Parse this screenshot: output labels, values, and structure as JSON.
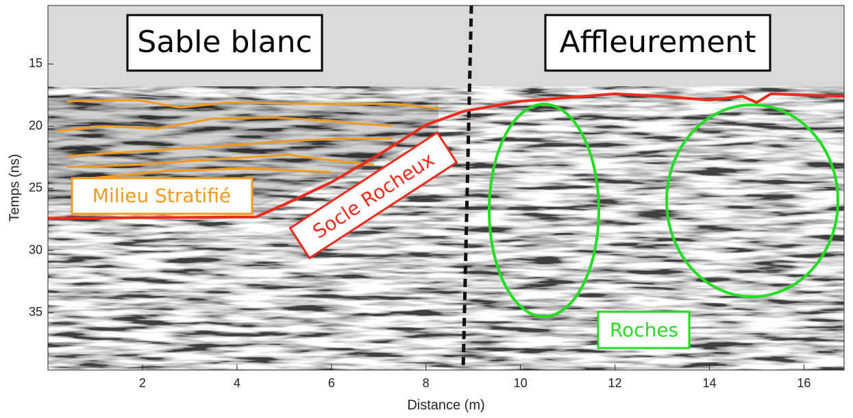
{
  "chart_data": {
    "type": "radargram",
    "xlabel": "Distance (m)",
    "ylabel": "Temps (ns)",
    "xlim": [
      0,
      16.85
    ],
    "ylim": [
      39.6,
      10.3
    ],
    "xticks": [
      2,
      4,
      6,
      8,
      10,
      12,
      14,
      16
    ],
    "yticks": [
      15,
      20,
      25,
      30,
      35
    ],
    "annotations": [
      "Sable blanc",
      "Affleurement",
      "Milieu Stratifié",
      "Socle Rocheux",
      "Roches"
    ],
    "series": [
      {
        "name": "Socle Rocheux",
        "color": "#ee2a1b",
        "x": [
          0,
          4.4,
          5,
          6,
          7,
          8,
          8.8,
          10,
          12,
          13,
          14,
          14.7,
          15,
          15.3,
          16.85
        ],
        "values": [
          27.4,
          27.3,
          26.3,
          24.5,
          22.3,
          19.9,
          18.8,
          18.0,
          17.4,
          17.6,
          17.9,
          17.6,
          18.1,
          17.4,
          17.6
        ]
      }
    ],
    "layers": {
      "color": "#f39a1e",
      "lines": [
        {
          "x": [
            0.4,
            1.9,
            2.8,
            3.8,
            5.5,
            7.3,
            8.3
          ],
          "values": [
            18.0,
            17.9,
            18.5,
            18.1,
            18.2,
            18.2,
            18.6
          ]
        },
        {
          "x": [
            0.2,
            1.2,
            2.3,
            3.5,
            4.8,
            6.0,
            7.3
          ],
          "values": [
            20.4,
            20.0,
            20.2,
            19.4,
            19.3,
            19.6,
            20.0
          ]
        },
        {
          "x": [
            0.4,
            1.6,
            3.3,
            5.1,
            6.2,
            7.3
          ],
          "values": [
            22.4,
            22.1,
            21.7,
            21.2,
            21.0,
            21.0
          ]
        },
        {
          "x": [
            0.4,
            1.9,
            3.8,
            5.1,
            6.1,
            6.9
          ],
          "values": [
            23.3,
            23.1,
            22.6,
            22.3,
            22.8,
            23.1
          ]
        },
        {
          "x": [
            0.6,
            2.5,
            4.2,
            6.0
          ],
          "values": [
            24.3,
            23.6,
            23.4,
            23.7
          ]
        }
      ]
    }
  }
}
